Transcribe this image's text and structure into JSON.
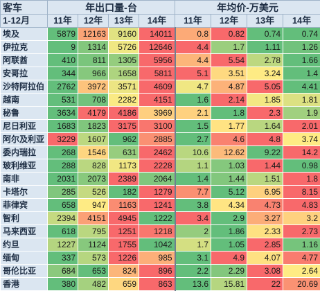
{
  "header": {
    "corner_top": "客车",
    "corner_bottom": "1-12月",
    "group_volume": "年出口量-台",
    "group_price": "年均价-万美元",
    "years": [
      "11年",
      "12年",
      "13年",
      "14年"
    ]
  },
  "rows": [
    {
      "country": "埃及",
      "volume": [
        "5879",
        "12163",
        "9160",
        "14011"
      ],
      "price": [
        "0.8",
        "0.82",
        "0.74",
        "0.74"
      ]
    },
    {
      "country": "伊拉克",
      "volume": [
        "9",
        "1314",
        "5726",
        "12646"
      ],
      "price": [
        "4.4",
        "1.7",
        "1.11",
        "1.26"
      ]
    },
    {
      "country": "阿联酋",
      "volume": [
        "410",
        "811",
        "1305",
        "5956"
      ],
      "price": [
        "4.4",
        "5.54",
        "2.78",
        "1.66"
      ]
    },
    {
      "country": "安哥拉",
      "volume": [
        "344",
        "966",
        "1658",
        "5811"
      ],
      "price": [
        "5.1",
        "3.51",
        "3.24",
        "1.4"
      ]
    },
    {
      "country": "沙特阿拉伯",
      "volume": [
        "2762",
        "3972",
        "3571",
        "4609"
      ],
      "price": [
        "4.7",
        "4.87",
        "5.05",
        "4.41"
      ]
    },
    {
      "country": "越南",
      "volume": [
        "531",
        "708",
        "2282",
        "4151"
      ],
      "price": [
        "1.6",
        "2.14",
        "1.85",
        "1.81"
      ]
    },
    {
      "country": "秘鲁",
      "volume": [
        "3634",
        "4179",
        "4186",
        "3969"
      ],
      "price": [
        "2.1",
        "1.8",
        "2.3",
        "1.9"
      ]
    },
    {
      "country": "尼日利亚",
      "volume": [
        "1683",
        "1823",
        "3175",
        "3100"
      ],
      "price": [
        "1.5",
        "1.77",
        "1.64",
        "2.01"
      ]
    },
    {
      "country": "阿尔及利亚",
      "volume": [
        "3229",
        "1607",
        "962",
        "2885"
      ],
      "price": [
        "2.7",
        "4.6",
        "4.8",
        "3.74"
      ]
    },
    {
      "country": "委内瑞拉",
      "volume": [
        "268",
        "1546",
        "631",
        "2462"
      ],
      "price": [
        "10.6",
        "12.62",
        "9.22",
        "14.2"
      ]
    },
    {
      "country": "玻利维亚",
      "volume": [
        "288",
        "828",
        "1173",
        "2228"
      ],
      "price": [
        "1.1",
        "1.03",
        "1.44",
        "0.98"
      ]
    },
    {
      "country": "南非",
      "volume": [
        "2031",
        "2073",
        "2389",
        "2064"
      ],
      "price": [
        "1.4",
        "1.44",
        "1.51",
        "1.8"
      ]
    },
    {
      "country": "卡塔尔",
      "volume": [
        "285",
        "526",
        "182",
        "1279"
      ],
      "price": [
        "7.7",
        "5.12",
        "6.95",
        "8.15"
      ]
    },
    {
      "country": "菲律宾",
      "volume": [
        "658",
        "947",
        "1163",
        "1241"
      ],
      "price": [
        "3.8",
        "4.34",
        "4.73",
        "4.83"
      ]
    },
    {
      "country": "智利",
      "volume": [
        "2394",
        "4151",
        "4945",
        "1222"
      ],
      "price": [
        "3.4",
        "2.9",
        "3.27",
        "3.2"
      ]
    },
    {
      "country": "马来西亚",
      "volume": [
        "618",
        "795",
        "1251",
        "1218"
      ],
      "price": [
        "2",
        "1.86",
        "2.33",
        "2.73"
      ]
    },
    {
      "country": "约旦",
      "volume": [
        "1227",
        "1124",
        "1755",
        "1042"
      ],
      "price": [
        "1.7",
        "1.05",
        "2.85",
        "1.16"
      ]
    },
    {
      "country": "缅甸",
      "volume": [
        "337",
        "573",
        "1226",
        "985"
      ],
      "price": [
        "3.1",
        "4.9",
        "4.07",
        "4.77"
      ]
    },
    {
      "country": "哥伦比亚",
      "volume": [
        "684",
        "653",
        "824",
        "896"
      ],
      "price": [
        "2.2",
        "2.29",
        "3.08",
        "2.64"
      ]
    },
    {
      "country": "香港",
      "volume": [
        "380",
        "482",
        "659",
        "863"
      ],
      "price": [
        "13.6",
        "15.81",
        "22",
        "20.69"
      ]
    }
  ]
}
